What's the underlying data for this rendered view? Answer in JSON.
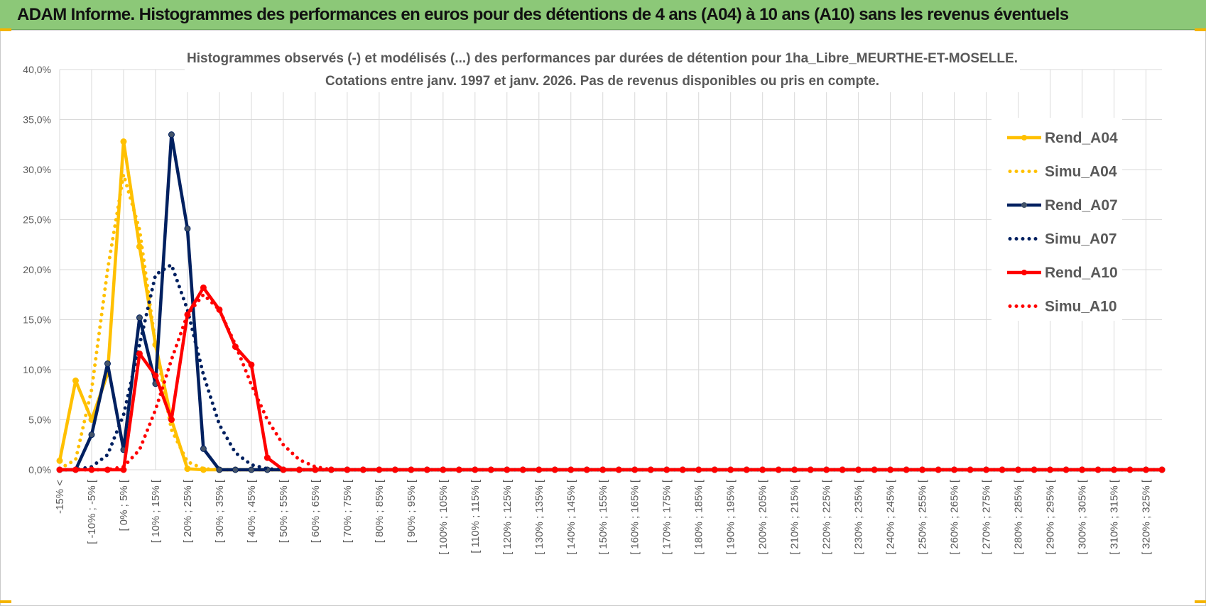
{
  "banner": {
    "title": "ADAM Informe. Histogrammes des performances en euros pour des détentions de 4 ans (A04) à 10 ans (A10) sans les revenus éventuels"
  },
  "colors": {
    "banner_bg": "#8cc878",
    "a04": "#ffc000",
    "a07": "#002060",
    "a10": "#ff0000",
    "grid": "#d9d9d9"
  },
  "chart_data": {
    "type": "line",
    "title_line1": "Histogrammes observés (-) et modélisés (...) des performances par durées de détention pour 1ha_Libre_MEURTHE-ET-MOSELLE.",
    "title_line2": "Cotations entre janv. 1997 et janv. 2026. Pas de revenus disponibles ou pris en compte.",
    "ylim": [
      0,
      40
    ],
    "y_ticks": [
      "0,0%",
      "5,0%",
      "10,0%",
      "15,0%",
      "20,0%",
      "25,0%",
      "30,0%",
      "35,0%",
      "40,0%"
    ],
    "grid": true,
    "legend_position": "right",
    "x_tick_labels": [
      "-15% <",
      "[ -10% ; -5% [",
      "[ 0% ; 5% [",
      "[ 10% ; 15% [",
      "[ 20% ; 25% [",
      "[ 30% ; 35% [",
      "[ 40% ; 45% [",
      "[ 50% ; 55% [",
      "[ 60% ; 65% [",
      "[ 70% ; 75% [",
      "[ 80% ; 85% [",
      "[ 90% ; 95% [",
      "[ 100% ; 105% [",
      "[ 110% ; 115% [",
      "[ 120% ; 125% [",
      "[ 130% ; 135% [",
      "[ 140% ; 145% [",
      "[ 150% ; 155% [",
      "[ 160% ; 165% [",
      "[ 170% ; 175% [",
      "[ 180% ; 185% [",
      "[ 190% ; 195% [",
      "[ 200% ; 205% [",
      "[ 210% ; 215% [",
      "[ 220% ; 225% [",
      "[ 230% ; 235% [",
      "[ 240% ; 245% [",
      "[ 250% ; 255% [",
      "[ 260% ; 265% [",
      "[ 270% ; 275% [",
      "[ 280% ; 285% [",
      "[ 290% ; 295% [",
      "[ 300% ; 305% [",
      "[ 310% ; 315% [",
      "[ 320% ; 325% ["
    ],
    "series": [
      {
        "name": "Rend_A04",
        "style": "solid",
        "color": "#ffc000",
        "head": [
          0.9,
          8.9,
          5.0,
          9.6,
          32.8,
          22.3,
          12.5,
          5.0,
          0.1,
          0.0
        ]
      },
      {
        "name": "Simu_A04",
        "style": "dotted",
        "color": "#ffc000",
        "head": [
          0.1,
          1.0,
          8.0,
          20.0,
          29.5,
          24.0,
          12.5,
          4.0,
          0.8,
          0.1
        ]
      },
      {
        "name": "Rend_A07",
        "style": "solid",
        "color": "#002060",
        "head": [
          0.0,
          0.0,
          3.5,
          10.6,
          2.0,
          15.2,
          8.6,
          33.5,
          24.1,
          2.1,
          0.0,
          0.0,
          0.0,
          0.0
        ]
      },
      {
        "name": "Simu_A07",
        "style": "dotted",
        "color": "#002060",
        "head": [
          0.0,
          0.0,
          0.3,
          1.5,
          5.5,
          12.5,
          19.5,
          20.5,
          16.0,
          9.5,
          4.5,
          1.7,
          0.5,
          0.1
        ]
      },
      {
        "name": "Rend_A10",
        "style": "solid",
        "color": "#ff0000",
        "head": [
          0.0,
          0.0,
          0.0,
          0.0,
          0.0,
          11.6,
          9.4,
          5.0,
          15.5,
          18.2,
          16.0,
          12.3,
          10.5,
          1.2,
          0.0
        ]
      },
      {
        "name": "Simu_A10",
        "style": "dotted",
        "color": "#ff0000",
        "head": [
          0.0,
          0.0,
          0.0,
          0.0,
          0.3,
          2.0,
          6.0,
          11.0,
          15.5,
          17.5,
          16.0,
          12.5,
          8.5,
          5.0,
          2.5,
          1.0,
          0.3
        ]
      }
    ],
    "n_points": 70
  }
}
